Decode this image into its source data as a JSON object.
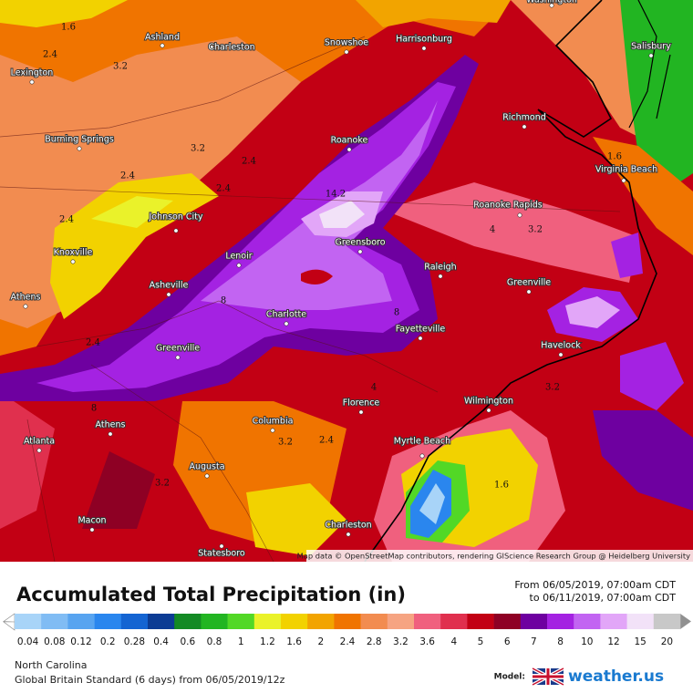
{
  "map": {
    "cities": [
      "Washington",
      "Lexington",
      "Ashland",
      "Charleston",
      "Snowshoe",
      "Harrisonburg",
      "Salisbury",
      "Burning Springs",
      "Richmond",
      "Roanoke",
      "Johnson City",
      "Virginia Beach",
      "Roanoke Rapids",
      "Knoxville",
      "Lenoir",
      "Greensboro",
      "Raleigh",
      "Asheville",
      "Athens",
      "Greenville",
      "Charlotte",
      "Fayetteville",
      "Havelock",
      "Greenville",
      "Florence",
      "Wilmington",
      "Athens",
      "Columbia",
      "Atlanta",
      "Myrtle Beach",
      "Augusta",
      "Macon",
      "Charleston",
      "Statesboro"
    ],
    "contour_labels": [
      1.6,
      2.4,
      3.2,
      3.2,
      2.4,
      2.4,
      2.4,
      2.4,
      14.2,
      8,
      8,
      8,
      2.4,
      3.2,
      3.2,
      3.2,
      2.4,
      3.2,
      1.6,
      1.6,
      4,
      4
    ],
    "attribution": "Map data © OpenStreetMap contributors, rendering GIScience Research Group @ Heidelberg University"
  },
  "header": {
    "title": "Accumulated Total Precipitation (in)",
    "from": "From 06/05/2019, 07:00am CDT",
    "to": "to 06/11/2019, 07:00am CDT"
  },
  "legend": {
    "levels": [
      {
        "value": 0.04,
        "color": "#a8d4f8"
      },
      {
        "value": 0.08,
        "color": "#80bcf4"
      },
      {
        "value": 0.12,
        "color": "#58a4f0"
      },
      {
        "value": 0.2,
        "color": "#2a86ee"
      },
      {
        "value": 0.28,
        "color": "#1464d2"
      },
      {
        "value": 0.4,
        "color": "#0c3c94"
      },
      {
        "value": 0.6,
        "color": "#138a24"
      },
      {
        "value": 0.8,
        "color": "#22b522"
      },
      {
        "value": 1,
        "color": "#52d826"
      },
      {
        "value": 1.2,
        "color": "#eaf22a"
      },
      {
        "value": 1.6,
        "color": "#f2d200"
      },
      {
        "value": 2,
        "color": "#f2a400"
      },
      {
        "value": 2.4,
        "color": "#f07400"
      },
      {
        "value": 2.8,
        "color": "#f28c50"
      },
      {
        "value": 3.2,
        "color": "#f6a482"
      },
      {
        "value": 3.6,
        "color": "#f0607e"
      },
      {
        "value": 4,
        "color": "#e0304e"
      },
      {
        "value": 5,
        "color": "#c20014"
      },
      {
        "value": 6,
        "color": "#8e0024"
      },
      {
        "value": 7,
        "color": "#6e00a0"
      },
      {
        "value": 8,
        "color": "#a422e2"
      },
      {
        "value": 10,
        "color": "#c264f2"
      },
      {
        "value": 12,
        "color": "#e2a6f8"
      },
      {
        "value": 15,
        "color": "#f2e2f8"
      },
      {
        "value": 20,
        "color": "#c8c8c8"
      }
    ]
  },
  "footer": {
    "region": "North Carolina",
    "model_run": "Global Britain Standard (6 days) from 06/05/2019/12z",
    "model_label": "Model:",
    "brand": "weather.us"
  }
}
